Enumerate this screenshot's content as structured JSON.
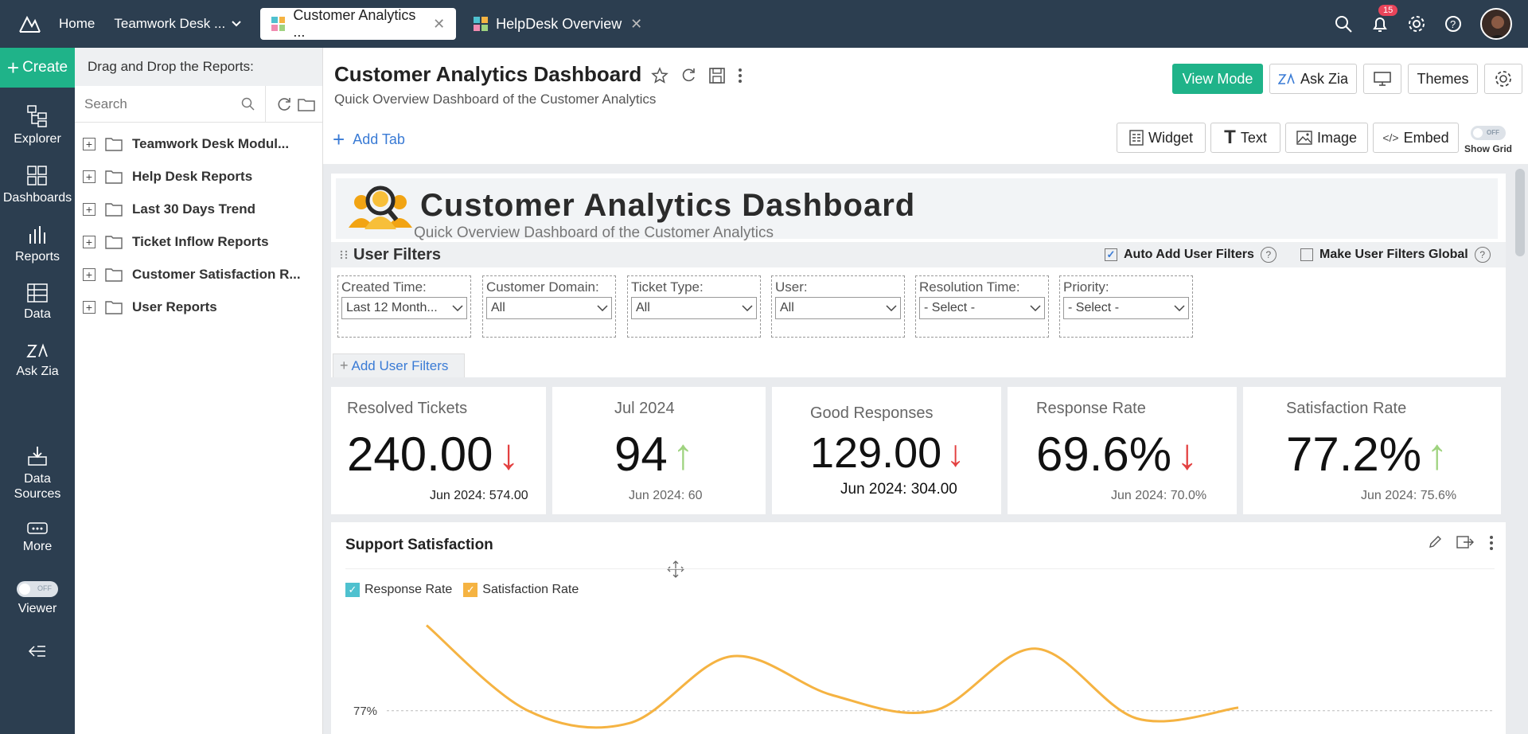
{
  "topbar": {
    "home": "Home",
    "workspace": "Teamwork Desk ...",
    "tabs": [
      {
        "label": "Customer Analytics ..."
      },
      {
        "label": "HelpDesk Overview"
      }
    ],
    "notifications": "15"
  },
  "rail": {
    "create": "Create",
    "items": [
      "Explorer",
      "Dashboards",
      "Reports",
      "Data",
      "Ask Zia",
      "Data Sources",
      "More",
      "Viewer"
    ],
    "viewer_toggle": "OFF"
  },
  "explorer": {
    "header": "Drag and Drop the Reports:",
    "search_placeholder": "Search",
    "folders": [
      "Teamwork Desk Modul...",
      "Help Desk Reports",
      "Last 30 Days Trend",
      "Ticket Inflow Reports",
      "Customer Satisfaction R...",
      "User Reports"
    ]
  },
  "dashboard": {
    "title": "Customer Analytics Dashboard",
    "subtitle": "Quick Overview Dashboard of the Customer Analytics",
    "view_mode": "View Mode",
    "ask_zia": "Ask Zia",
    "themes": "Themes",
    "add_tab": "Add Tab",
    "widget": "Widget",
    "text": "Text",
    "image": "Image",
    "embed": "Embed",
    "show_grid": "Show Grid",
    "grid_toggle": "OFF"
  },
  "banner": {
    "title": "Customer Analytics Dashboard",
    "subtitle": "Quick Overview Dashboard of the Customer Analytics"
  },
  "user_filters": {
    "title": "User Filters",
    "auto_add": "Auto Add User Filters",
    "make_global": "Make User Filters Global",
    "add": "Add User Filters",
    "filters": [
      {
        "label": "Created Time:",
        "value": "Last 12 Month..."
      },
      {
        "label": "Customer Domain:",
        "value": "All"
      },
      {
        "label": "Ticket Type:",
        "value": "All"
      },
      {
        "label": "User:",
        "value": "All"
      },
      {
        "label": "Resolution Time:",
        "value": "- Select -"
      },
      {
        "label": "Priority:",
        "value": "- Select -"
      }
    ]
  },
  "kpis": [
    {
      "title": "Resolved Tickets",
      "value": "240.00",
      "compare": "Jun 2024: 574.00",
      "trend": "down"
    },
    {
      "title": "Jul 2024",
      "value": "94",
      "compare": "Jun 2024: 60",
      "trend": "up"
    },
    {
      "title": "Good Responses",
      "value": "129.00",
      "compare": "Jun 2024: 304.00",
      "trend": "down"
    },
    {
      "title": "Response Rate",
      "value": "69.6%",
      "compare": "Jun 2024: 70.0%",
      "trend": "down"
    },
    {
      "title": "Satisfaction Rate",
      "value": "77.2%",
      "compare": "Jun 2024: 75.6%",
      "trend": "up"
    }
  ],
  "chart": {
    "title": "Support Satisfaction",
    "legend": [
      {
        "name": "Response Rate",
        "color": "#4fc1cf"
      },
      {
        "name": "Satisfaction Rate",
        "color": "#f5b342"
      }
    ],
    "gridline_label": "77%"
  },
  "chart_data": {
    "type": "line",
    "series": [
      {
        "name": "Satisfaction Rate",
        "values": [
          82.5,
          77.0,
          76.2,
          80.5,
          78.0,
          77.0,
          81.0,
          76.5,
          77.2
        ]
      }
    ],
    "y_reference": 77
  }
}
